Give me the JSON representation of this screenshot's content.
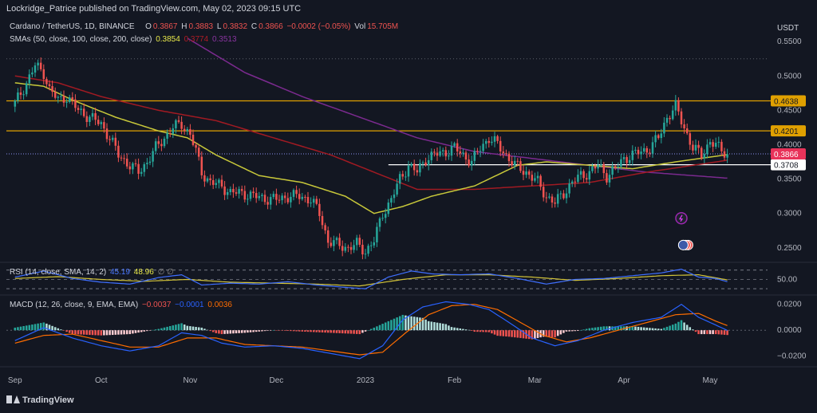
{
  "header": {
    "publisher_line": "Lockridge_Patrice published on TradingView.com, May 02, 2023 09:15 UTC"
  },
  "legend": {
    "symbol": "Cardano / TetherUS, 1D, BINANCE",
    "o_label": "O",
    "o_value": "0.3867",
    "h_label": "H",
    "h_value": "0.3883",
    "l_label": "L",
    "l_value": "0.3832",
    "c_label": "C",
    "c_value": "0.3866",
    "change": "−0.0002 (−0.05%)",
    "vol_label": "Vol",
    "vol_value": "15.705M",
    "sma_label": "SMAs (50, close, 100, close, 200, close)",
    "sma50_value": "0.3854",
    "sma100_value": "0.3774",
    "sma200_value": "0.3513",
    "rsi_label": "RSI (14, close, SMA, 14, 2)",
    "rsi_value": "45.19",
    "rsi_sma_value": "48.96",
    "rsi_extra": "∅ ∅",
    "macd_label": "MACD (12, 26, close, 9, EMA, EMA)",
    "macd_hist": "−0.0037",
    "macd_line": "−0.0001",
    "macd_signal": "0.0036"
  },
  "footer": {
    "brand": "TradingView"
  },
  "colors": {
    "bg": "#131722",
    "up": "#26a69a",
    "down": "#ef5350",
    "sma50": "#c8c83a",
    "sma100": "#a11a22",
    "sma200": "#7b2a8f",
    "resistance": "#e0a000",
    "support": "#ffffff",
    "rsi": "#3f6fff",
    "rsi_sma": "#d4c53a",
    "macd": "#2962ff",
    "signal": "#ff6d00",
    "price_line": "#e8335a"
  },
  "chart_data": [
    {
      "type": "candlestick",
      "title": "Cardano / TetherUS, 1D, BINANCE",
      "x_ticks": [
        "Sep",
        "Oct",
        "Nov",
        "Dec",
        "2023",
        "Feb",
        "Mar",
        "Apr",
        "May"
      ],
      "x_tick_days": [
        0,
        30,
        61,
        91,
        122,
        153,
        181,
        212,
        242
      ],
      "y_axis_unit": "USDT",
      "y_ticks": [
        "0.5500",
        "0.5000",
        "0.4500",
        "0.4000",
        "0.3500",
        "0.3000",
        "0.2500"
      ],
      "ylim": [
        0.23,
        0.585
      ],
      "xlim": [
        -3,
        262
      ],
      "levels": [
        {
          "value": 0.4638,
          "label": "0.4638",
          "kind": "resistance"
        },
        {
          "value": 0.4201,
          "label": "0.4201",
          "kind": "resistance"
        },
        {
          "value": 0.3708,
          "label": "0.3708",
          "kind": "support"
        }
      ],
      "last_price": {
        "value": 0.3866,
        "label": "0.3866"
      },
      "dotted_level": 0.525,
      "close_keypoints": [
        [
          0,
          0.46
        ],
        [
          4,
          0.49
        ],
        [
          7,
          0.515
        ],
        [
          10,
          0.505
        ],
        [
          12,
          0.48
        ],
        [
          15,
          0.465
        ],
        [
          18,
          0.47
        ],
        [
          22,
          0.45
        ],
        [
          26,
          0.44
        ],
        [
          30,
          0.43
        ],
        [
          33,
          0.41
        ],
        [
          36,
          0.385
        ],
        [
          40,
          0.37
        ],
        [
          43,
          0.36
        ],
        [
          46,
          0.375
        ],
        [
          49,
          0.395
        ],
        [
          52,
          0.41
        ],
        [
          55,
          0.425
        ],
        [
          58,
          0.43
        ],
        [
          61,
          0.415
        ],
        [
          63,
          0.39
        ],
        [
          65,
          0.36
        ],
        [
          68,
          0.345
        ],
        [
          72,
          0.34
        ],
        [
          75,
          0.33
        ],
        [
          79,
          0.33
        ],
        [
          83,
          0.325
        ],
        [
          87,
          0.322
        ],
        [
          91,
          0.32
        ],
        [
          95,
          0.325
        ],
        [
          99,
          0.325
        ],
        [
          103,
          0.32
        ],
        [
          106,
          0.3
        ],
        [
          109,
          0.26
        ],
        [
          112,
          0.255
        ],
        [
          116,
          0.25
        ],
        [
          119,
          0.255
        ],
        [
          122,
          0.245
        ],
        [
          125,
          0.26
        ],
        [
          128,
          0.3
        ],
        [
          131,
          0.32
        ],
        [
          134,
          0.35
        ],
        [
          137,
          0.37
        ],
        [
          140,
          0.36
        ],
        [
          143,
          0.38
        ],
        [
          146,
          0.385
        ],
        [
          150,
          0.39
        ],
        [
          153,
          0.395
        ],
        [
          156,
          0.385
        ],
        [
          159,
          0.375
        ],
        [
          162,
          0.395
        ],
        [
          165,
          0.41
        ],
        [
          168,
          0.4
        ],
        [
          171,
          0.385
        ],
        [
          174,
          0.37
        ],
        [
          178,
          0.36
        ],
        [
          182,
          0.345
        ],
        [
          185,
          0.325
        ],
        [
          188,
          0.315
        ],
        [
          191,
          0.33
        ],
        [
          194,
          0.345
        ],
        [
          197,
          0.355
        ],
        [
          200,
          0.36
        ],
        [
          203,
          0.37
        ],
        [
          206,
          0.355
        ],
        [
          209,
          0.365
        ],
        [
          212,
          0.38
        ],
        [
          215,
          0.385
        ],
        [
          218,
          0.39
        ],
        [
          221,
          0.395
        ],
        [
          224,
          0.41
        ],
        [
          227,
          0.44
        ],
        [
          230,
          0.455
        ],
        [
          233,
          0.425
        ],
        [
          236,
          0.395
        ],
        [
          239,
          0.385
        ],
        [
          242,
          0.405
        ],
        [
          245,
          0.395
        ],
        [
          248,
          0.3866
        ]
      ],
      "sma50_keypoints": [
        [
          0,
          0.49
        ],
        [
          10,
          0.485
        ],
        [
          20,
          0.465
        ],
        [
          35,
          0.44
        ],
        [
          50,
          0.42
        ],
        [
          60,
          0.41
        ],
        [
          70,
          0.385
        ],
        [
          85,
          0.355
        ],
        [
          100,
          0.345
        ],
        [
          115,
          0.325
        ],
        [
          125,
          0.3
        ],
        [
          135,
          0.31
        ],
        [
          145,
          0.325
        ],
        [
          160,
          0.34
        ],
        [
          175,
          0.37
        ],
        [
          185,
          0.375
        ],
        [
          200,
          0.37
        ],
        [
          215,
          0.365
        ],
        [
          230,
          0.375
        ],
        [
          248,
          0.3854
        ]
      ],
      "sma100_keypoints": [
        [
          0,
          0.5
        ],
        [
          15,
          0.49
        ],
        [
          30,
          0.47
        ],
        [
          50,
          0.45
        ],
        [
          70,
          0.435
        ],
        [
          90,
          0.41
        ],
        [
          110,
          0.385
        ],
        [
          125,
          0.36
        ],
        [
          140,
          0.335
        ],
        [
          160,
          0.335
        ],
        [
          180,
          0.34
        ],
        [
          200,
          0.345
        ],
        [
          220,
          0.36
        ],
        [
          248,
          0.3774
        ]
      ],
      "sma200_keypoints": [
        [
          60,
          0.555
        ],
        [
          80,
          0.505
        ],
        [
          100,
          0.47
        ],
        [
          120,
          0.44
        ],
        [
          140,
          0.41
        ],
        [
          160,
          0.39
        ],
        [
          180,
          0.38
        ],
        [
          200,
          0.37
        ],
        [
          220,
          0.36
        ],
        [
          248,
          0.3513
        ]
      ]
    },
    {
      "type": "line",
      "title": "RSI (14, close, SMA, 14, 2)",
      "y_ticks": [
        "50.00"
      ],
      "ylim": [
        20,
        85
      ],
      "bands": [
        70,
        50,
        30
      ],
      "series": [
        {
          "name": "RSI",
          "keypoints": [
            [
              0,
              55
            ],
            [
              10,
              68
            ],
            [
              20,
              52
            ],
            [
              30,
              44
            ],
            [
              40,
              40
            ],
            [
              50,
              54
            ],
            [
              58,
              60
            ],
            [
              65,
              38
            ],
            [
              75,
              42
            ],
            [
              85,
              40
            ],
            [
              95,
              45
            ],
            [
              105,
              38
            ],
            [
              115,
              33
            ],
            [
              122,
              30
            ],
            [
              130,
              55
            ],
            [
              138,
              68
            ],
            [
              145,
              62
            ],
            [
              155,
              60
            ],
            [
              165,
              62
            ],
            [
              175,
              52
            ],
            [
              185,
              40
            ],
            [
              195,
              50
            ],
            [
              205,
              52
            ],
            [
              215,
              58
            ],
            [
              225,
              64
            ],
            [
              232,
              72
            ],
            [
              238,
              55
            ],
            [
              244,
              52
            ],
            [
              248,
              45.19
            ]
          ]
        },
        {
          "name": "RSI SMA",
          "keypoints": [
            [
              0,
              52
            ],
            [
              15,
              56
            ],
            [
              30,
              50
            ],
            [
              45,
              46
            ],
            [
              60,
              50
            ],
            [
              75,
              44
            ],
            [
              90,
              42
            ],
            [
              105,
              40
            ],
            [
              120,
              36
            ],
            [
              135,
              50
            ],
            [
              150,
              60
            ],
            [
              165,
              60
            ],
            [
              180,
              55
            ],
            [
              195,
              48
            ],
            [
              210,
              52
            ],
            [
              225,
              58
            ],
            [
              238,
              60
            ],
            [
              248,
              48.96
            ]
          ]
        }
      ]
    },
    {
      "type": "bar",
      "title": "MACD (12, 26, close, 9, EMA, EMA)",
      "y_ticks": [
        "0.0200",
        "0.0000",
        "−0.0200"
      ],
      "ylim": [
        -0.027,
        0.026
      ],
      "series": [
        {
          "name": "MACD",
          "keypoints": [
            [
              0,
              -0.008
            ],
            [
              10,
              0.002
            ],
            [
              20,
              -0.006
            ],
            [
              30,
              -0.012
            ],
            [
              40,
              -0.016
            ],
            [
              50,
              -0.012
            ],
            [
              58,
              -0.002
            ],
            [
              65,
              -0.004
            ],
            [
              72,
              -0.01
            ],
            [
              80,
              -0.013
            ],
            [
              90,
              -0.012
            ],
            [
              100,
              -0.014
            ],
            [
              110,
              -0.018
            ],
            [
              120,
              -0.022
            ],
            [
              128,
              -0.012
            ],
            [
              135,
              0.008
            ],
            [
              142,
              0.018
            ],
            [
              150,
              0.022
            ],
            [
              158,
              0.02
            ],
            [
              165,
              0.016
            ],
            [
              172,
              0.006
            ],
            [
              180,
              -0.006
            ],
            [
              188,
              -0.012
            ],
            [
              196,
              -0.008
            ],
            [
              205,
              0.0
            ],
            [
              215,
              0.006
            ],
            [
              225,
              0.01
            ],
            [
              232,
              0.02
            ],
            [
              238,
              0.01
            ],
            [
              244,
              0.004
            ],
            [
              248,
              -0.0001
            ]
          ]
        },
        {
          "name": "Signal",
          "keypoints": [
            [
              0,
              -0.01
            ],
            [
              10,
              -0.004
            ],
            [
              20,
              -0.003
            ],
            [
              30,
              -0.008
            ],
            [
              40,
              -0.013
            ],
            [
              50,
              -0.013
            ],
            [
              60,
              -0.006
            ],
            [
              70,
              -0.006
            ],
            [
              80,
              -0.011
            ],
            [
              90,
              -0.012
            ],
            [
              100,
              -0.013
            ],
            [
              110,
              -0.016
            ],
            [
              120,
              -0.019
            ],
            [
              128,
              -0.017
            ],
            [
              136,
              -0.002
            ],
            [
              144,
              0.012
            ],
            [
              152,
              0.019
            ],
            [
              160,
              0.02
            ],
            [
              168,
              0.016
            ],
            [
              176,
              0.006
            ],
            [
              184,
              -0.004
            ],
            [
              192,
              -0.009
            ],
            [
              200,
              -0.006
            ],
            [
              210,
              0.0
            ],
            [
              220,
              0.006
            ],
            [
              230,
              0.012
            ],
            [
              238,
              0.013
            ],
            [
              244,
              0.007
            ],
            [
              248,
              0.0036
            ]
          ]
        }
      ]
    }
  ]
}
